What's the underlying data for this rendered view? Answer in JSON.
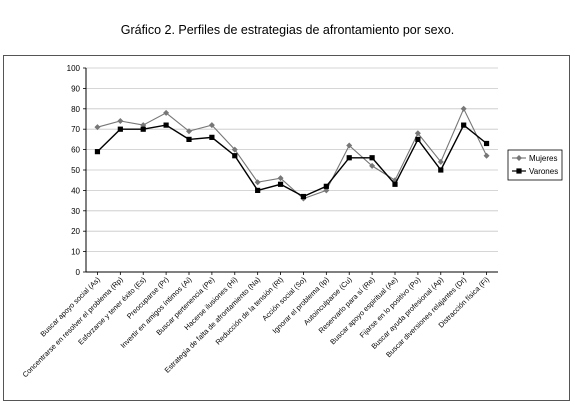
{
  "caption": "Gráfico 2. Perfiles de estrategias de afrontamiento por sexo.",
  "chart_data": {
    "type": "line",
    "title": "",
    "xlabel": "",
    "ylabel": "",
    "ylim": [
      0,
      100
    ],
    "yticks": [
      0,
      10,
      20,
      30,
      40,
      50,
      60,
      70,
      80,
      90,
      100
    ],
    "grid": "horizontal",
    "legend_position": "right",
    "categories": [
      "Buscar apoyo social (As)",
      "Concentrarse en resolver el problema (Rp)",
      "Esforzarse y tener éxito (Es)",
      "Preocuparse (Pr)",
      "Invertir en amigos íntimos (Ai)",
      "Buscar pertenencia (Pe)",
      "Hacerse ilusiones (Hi)",
      "Estrategia de falta de afrontamiento (Na)",
      "Reducción de la tensión (Rt)",
      "Acción social (So)",
      "Ignorar el problema (Ip)",
      "Autoinculparse (Cu)",
      "Reservarlo para sí (Re)",
      "Buscar apoyo espiritual (Ae)",
      "Fijarse en lo positivo (Po)",
      "Buscar ayuda profesional (Ap)",
      "Buscar diversiones relajantes (Dr)",
      "Distracción física (Fi)"
    ],
    "series": [
      {
        "name": "Mujeres",
        "color": "#777777",
        "marker": "diamond",
        "values": [
          71,
          74,
          72,
          78,
          69,
          72,
          60,
          44,
          46,
          36,
          40,
          62,
          52,
          45,
          68,
          54,
          80,
          57
        ]
      },
      {
        "name": "Varones",
        "color": "#000000",
        "marker": "square",
        "values": [
          59,
          70,
          70,
          72,
          65,
          66,
          57,
          40,
          43,
          37,
          42,
          56,
          56,
          43,
          65,
          50,
          72,
          63
        ]
      }
    ]
  }
}
